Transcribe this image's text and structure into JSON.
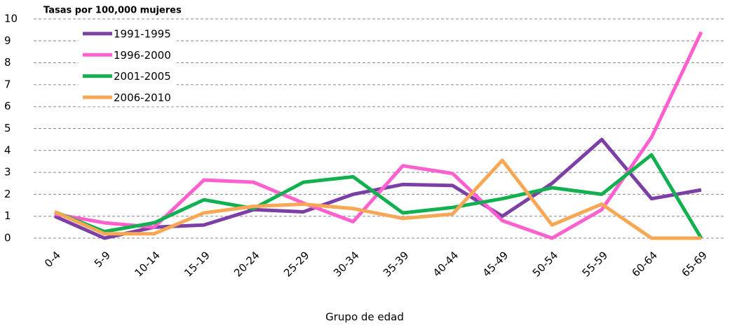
{
  "chart_data": {
    "type": "line",
    "y_label": "Tasas por 100,000 mujeres",
    "x_label": "Grupo de edad",
    "categories": [
      "0-4",
      "5-9",
      "10-14",
      "15-19",
      "20-24",
      "25-29",
      "30-34",
      "35-39",
      "40-44",
      "45-49",
      "50-54",
      "55-59",
      "60-64",
      "65-69"
    ],
    "series": [
      {
        "name": "1991-1995",
        "color": "#7b3fa6",
        "values": [
          1.0,
          0.0,
          0.5,
          0.6,
          1.3,
          1.2,
          2.0,
          2.45,
          2.4,
          1.0,
          2.5,
          4.5,
          1.8,
          2.2
        ]
      },
      {
        "name": "1996-2000",
        "color": "#ff5fcf",
        "values": [
          1.1,
          0.7,
          0.5,
          2.65,
          2.55,
          1.6,
          0.75,
          3.3,
          2.95,
          0.8,
          0.0,
          1.3,
          4.6,
          9.4
        ]
      },
      {
        "name": "2001-2005",
        "color": "#12b04f",
        "values": [
          1.2,
          0.3,
          0.7,
          1.75,
          1.35,
          2.55,
          2.8,
          1.15,
          1.4,
          1.8,
          2.3,
          2.0,
          3.8,
          0.0
        ]
      },
      {
        "name": "2006-2010",
        "color": "#f8a755",
        "values": [
          1.2,
          0.2,
          0.2,
          1.15,
          1.45,
          1.55,
          1.35,
          0.9,
          1.1,
          3.55,
          0.6,
          1.55,
          0.0,
          0.0
        ]
      }
    ],
    "ylim": [
      0,
      10
    ],
    "yticks": [
      0,
      1,
      2,
      3,
      4,
      5,
      6,
      7,
      8,
      9,
      10
    ],
    "grid": true
  }
}
